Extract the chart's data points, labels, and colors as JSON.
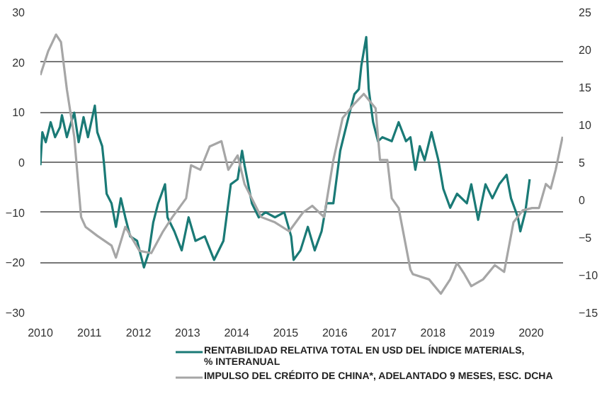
{
  "chart_data": {
    "type": "line",
    "xlim": [
      2010,
      2020.65
    ],
    "xticks": [
      2010,
      2011,
      2012,
      2013,
      2014,
      2015,
      2016,
      2017,
      2018,
      2019,
      2020
    ],
    "ylim": [
      -30,
      30
    ],
    "yticks": [
      -30,
      -20,
      -10,
      0,
      10,
      20,
      30
    ],
    "y2lim": [
      -15,
      25
    ],
    "y2ticks": [
      -15,
      -10,
      -5,
      0,
      5,
      10,
      15,
      20,
      25
    ],
    "grid": "y",
    "legend": "bottom",
    "series": [
      {
        "name": "RENTABILIDAD RELATIVA TOTAL EN USD DEL ÍNDICE MATERIALS,\n% INTERANUAL",
        "color": "#1a7a76",
        "x": [
          2010.0,
          2010.04,
          2010.11,
          2010.21,
          2010.3,
          2010.4,
          2010.44,
          2010.54,
          2010.64,
          2010.69,
          2010.78,
          2010.88,
          2010.97,
          2011.11,
          2011.16,
          2011.26,
          2011.3,
          2011.35,
          2011.45,
          2011.54,
          2011.64,
          2011.73,
          2011.83,
          2011.97,
          2012.11,
          2012.21,
          2012.3,
          2012.4,
          2012.54,
          2012.59,
          2012.73,
          2012.88,
          2013.02,
          2013.16,
          2013.35,
          2013.54,
          2013.73,
          2013.88,
          2014.02,
          2014.11,
          2014.16,
          2014.31,
          2014.45,
          2014.59,
          2014.78,
          2014.97,
          2015.11,
          2015.16,
          2015.3,
          2015.45,
          2015.59,
          2015.73,
          2015.83,
          2015.97,
          2016.11,
          2016.3,
          2016.4,
          2016.49,
          2016.54,
          2016.64,
          2016.69,
          2016.78,
          2016.88,
          2016.97,
          2017.16,
          2017.3,
          2017.45,
          2017.54,
          2017.64,
          2017.73,
          2017.83,
          2017.97,
          2018.11,
          2018.21,
          2018.35,
          2018.49,
          2018.69,
          2018.78,
          2018.92,
          2019.07,
          2019.21,
          2019.35,
          2019.5,
          2019.59,
          2019.73,
          2019.78,
          2019.88,
          2019.97
        ],
        "values": [
          -0.6,
          6,
          4,
          8,
          5,
          7,
          9.4,
          5,
          8.4,
          9.9,
          4,
          9,
          5,
          11.3,
          6,
          3.2,
          -0.6,
          -6.3,
          -8.2,
          -12.9,
          -7.2,
          -11,
          -14.8,
          -15.7,
          -21,
          -18,
          -12,
          -8.2,
          -4.4,
          -11,
          -13.8,
          -17.6,
          -11,
          -15.7,
          -14.8,
          -19.5,
          -15.7,
          -4.4,
          -3.4,
          2.3,
          -0.6,
          -8.2,
          -11,
          -10,
          -11,
          -10,
          -14.8,
          -19.5,
          -17.6,
          -12.9,
          -17.6,
          -13.8,
          -8.2,
          -8.2,
          2.3,
          9.9,
          13.6,
          14.6,
          19.3,
          25,
          14.6,
          8,
          4.2,
          5,
          4.2,
          8,
          4.2,
          5,
          -1.5,
          3.2,
          0.4,
          6,
          0.4,
          -5.3,
          -9.1,
          -6.3,
          -8.2,
          -4.4,
          -11.5,
          -4.4,
          -7.2,
          -4.4,
          -2.5,
          -7.2,
          -11,
          -13.8,
          -10,
          -3.4
        ]
      },
      {
        "name": "IMPULSO DEL CRÉDITO DE CHINA*, ADELANTADO 9 MESES, ESC. DCHA",
        "color": "#a6a6a6",
        "axis": "y2",
        "x": [
          2010.0,
          2010.16,
          2010.32,
          2010.42,
          2010.54,
          2010.69,
          2010.83,
          2010.92,
          2011.16,
          2011.45,
          2011.54,
          2011.73,
          2012.02,
          2012.26,
          2012.5,
          2012.69,
          2012.97,
          2013.07,
          2013.26,
          2013.45,
          2013.69,
          2013.83,
          2014.02,
          2014.16,
          2014.5,
          2014.78,
          2015.07,
          2015.35,
          2015.54,
          2015.78,
          2015.97,
          2016.16,
          2016.4,
          2016.59,
          2016.83,
          2016.92,
          2017.07,
          2017.16,
          2017.3,
          2017.54,
          2017.59,
          2017.92,
          2018.16,
          2018.35,
          2018.49,
          2018.64,
          2018.78,
          2019.02,
          2019.26,
          2019.45,
          2019.64,
          2019.83,
          2020.02,
          2020.16,
          2020.3,
          2020.4,
          2020.5,
          2020.64
        ],
        "values": [
          16.6,
          19.8,
          22,
          21,
          14.7,
          8.4,
          -2.3,
          -3.6,
          -4.8,
          -6.1,
          -7.7,
          -3.6,
          -6.8,
          -7.1,
          -4.2,
          -2.3,
          0.2,
          4.6,
          4,
          7.1,
          7.8,
          4,
          5.9,
          2.1,
          -2.3,
          -3,
          -4.2,
          -1.7,
          -0.8,
          -2.3,
          5.3,
          10.9,
          12.8,
          14.1,
          12.2,
          5.3,
          5.3,
          0.2,
          -1.1,
          -9.3,
          -9.9,
          -10.6,
          -12.5,
          -10.6,
          -8.4,
          -9.9,
          -11.5,
          -10.6,
          -8.7,
          -9.6,
          -3,
          -1.4,
          -1.1,
          -1.1,
          2.1,
          1.5,
          4,
          8.4
        ]
      }
    ]
  }
}
